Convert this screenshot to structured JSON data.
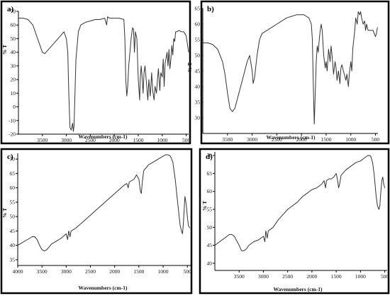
{
  "figure": {
    "x_axis_label": "Wavenumbers (cm-1)",
    "y_axis_label": "% T"
  },
  "chart_data": [
    {
      "type": "line",
      "panel_label": "a)",
      "xlabel": "Wavenumbers (cm-1)",
      "ylabel": "% T",
      "xlim": [
        4000,
        450
      ],
      "ylim": [
        -20,
        70
      ],
      "xticks": [
        3500,
        3000,
        2500,
        2000,
        1500,
        1000,
        500
      ],
      "yticks": [
        -20,
        -10,
        0,
        10,
        20,
        30,
        40,
        50,
        60,
        70
      ],
      "xtick_labels": [
        "3500",
        "3000",
        "2500",
        "2000",
        "1500",
        "1000",
        "500"
      ],
      "ytick_labels": [
        "-20",
        "-10",
        "0",
        "10",
        "20",
        "30",
        "40",
        "50",
        "60",
        "70"
      ],
      "grid": false,
      "series": [
        {
          "x": [
            4000,
            3900,
            3800,
            3700,
            3600,
            3500,
            3450,
            3400,
            3300,
            3200,
            3100,
            3050,
            3000,
            2970,
            2950,
            2925,
            2900,
            2870,
            2855,
            2840,
            2800,
            2750,
            2700,
            2600,
            2500,
            2400,
            2300,
            2200,
            2160,
            2140,
            2100,
            2000,
            1900,
            1800,
            1780,
            1760,
            1740,
            1720,
            1700,
            1650,
            1620,
            1600,
            1580,
            1560,
            1530,
            1500,
            1470,
            1460,
            1440,
            1420,
            1400,
            1380,
            1360,
            1330,
            1300,
            1280,
            1250,
            1220,
            1200,
            1170,
            1150,
            1120,
            1100,
            1080,
            1050,
            1030,
            1000,
            980,
            960,
            940,
            900,
            880,
            860,
            840,
            820,
            800,
            780,
            760,
            740,
            720,
            700,
            650,
            600,
            550,
            500,
            450
          ],
          "y": [
            65,
            65,
            64,
            60,
            50,
            40,
            39,
            41,
            45,
            49,
            53,
            55,
            50,
            40,
            10,
            -15,
            -17,
            -12,
            -18,
            -14,
            35,
            55,
            60,
            62,
            63,
            64,
            64,
            65,
            60,
            66,
            65,
            65,
            65,
            64,
            50,
            20,
            8,
            15,
            30,
            50,
            58,
            57,
            40,
            55,
            50,
            20,
            5,
            20,
            30,
            22,
            10,
            25,
            30,
            18,
            5,
            20,
            8,
            25,
            12,
            5,
            15,
            10,
            20,
            28,
            12,
            25,
            22,
            35,
            15,
            32,
            40,
            30,
            42,
            28,
            35,
            45,
            38,
            50,
            48,
            55,
            55,
            56,
            55,
            55,
            52,
            40
          ]
        }
      ]
    },
    {
      "type": "line",
      "panel_label": "b)",
      "xlabel": "Wavenumbers (cm-1)",
      "ylabel": "% T",
      "xlim": [
        4000,
        450
      ],
      "ylim": [
        25,
        65
      ],
      "xticks": [
        3500,
        3000,
        2500,
        2000,
        1500,
        1000,
        500
      ],
      "yticks": [
        30,
        35,
        40,
        45,
        50,
        55,
        60,
        65
      ],
      "xtick_labels": [
        "3500",
        "3000",
        "2500",
        "2000",
        "1500",
        "1000",
        "500"
      ],
      "ytick_labels": [
        "30",
        "35",
        "40",
        "45",
        "50",
        "55",
        "60",
        "65"
      ],
      "grid": false,
      "series": [
        {
          "x": [
            4000,
            3900,
            3800,
            3700,
            3600,
            3550,
            3500,
            3450,
            3400,
            3350,
            3300,
            3200,
            3100,
            3050,
            3000,
            2980,
            2950,
            2900,
            2850,
            2800,
            2700,
            2600,
            2500,
            2400,
            2300,
            2200,
            2100,
            2000,
            1950,
            1900,
            1850,
            1800,
            1780,
            1760,
            1740,
            1720,
            1700,
            1680,
            1660,
            1640,
            1620,
            1600,
            1580,
            1550,
            1520,
            1500,
            1480,
            1450,
            1420,
            1400,
            1380,
            1350,
            1320,
            1300,
            1280,
            1250,
            1220,
            1200,
            1180,
            1150,
            1100,
            1080,
            1050,
            1030,
            1000,
            980,
            960,
            940,
            920,
            900,
            870,
            850,
            820,
            800,
            780,
            750,
            720,
            700,
            680,
            650,
            600,
            550,
            500,
            480,
            460
          ],
          "y": [
            54,
            54,
            53.5,
            52,
            48,
            44,
            38,
            33,
            32,
            33,
            36,
            42,
            48,
            50,
            45,
            41,
            43,
            50,
            55,
            57,
            58,
            59,
            60,
            61,
            62,
            62.5,
            63,
            63,
            63,
            62.5,
            62,
            60,
            55,
            40,
            28,
            38,
            48,
            53,
            51,
            55,
            58,
            60,
            58,
            50,
            46,
            48,
            45,
            52,
            48,
            53,
            50,
            44,
            48,
            46,
            42,
            45,
            41,
            46,
            47,
            45,
            42,
            44,
            40,
            44,
            48,
            45,
            52,
            55,
            58,
            62,
            60,
            64,
            63,
            64,
            62,
            60,
            61,
            58,
            60,
            58,
            58,
            58,
            56,
            57,
            59
          ]
        }
      ]
    },
    {
      "type": "line",
      "panel_label": "c)",
      "xlabel": "Wavenumbers (cm-1)",
      "ylabel": "% T",
      "xlim": [
        4000,
        430
      ],
      "ylim": [
        33,
        72
      ],
      "xticks": [
        4000,
        3500,
        3000,
        2500,
        2000,
        1500,
        1000,
        500
      ],
      "yticks": [
        35,
        40,
        45,
        50,
        55,
        60,
        65,
        70
      ],
      "xtick_labels": [
        "4000",
        "3500",
        "3000",
        "2500",
        "2000",
        "1500",
        "1000",
        "500"
      ],
      "ytick_labels": [
        "35",
        "40",
        "45",
        "50",
        "55",
        "60",
        "65",
        "70"
      ],
      "grid": false,
      "series": [
        {
          "x": [
            4000,
            3900,
            3800,
            3700,
            3650,
            3600,
            3550,
            3500,
            3450,
            3400,
            3350,
            3300,
            3200,
            3100,
            3000,
            2970,
            2950,
            2920,
            2900,
            2850,
            2800,
            2700,
            2600,
            2500,
            2400,
            2300,
            2200,
            2100,
            2000,
            1900,
            1800,
            1750,
            1720,
            1700,
            1650,
            1600,
            1550,
            1500,
            1470,
            1450,
            1430,
            1400,
            1300,
            1200,
            1100,
            1050,
            1000,
            950,
            900,
            850,
            800,
            750,
            700,
            650,
            620,
            600,
            580,
            550,
            520,
            500,
            480,
            450
          ],
          "y": [
            40,
            41,
            42,
            43,
            43,
            42,
            40,
            38.5,
            38,
            38.5,
            39.5,
            40.5,
            41.5,
            42.5,
            44,
            42,
            45,
            43,
            45,
            45.5,
            46,
            47.5,
            49,
            50.5,
            52,
            53.5,
            55,
            56.5,
            58,
            59.5,
            61,
            61.5,
            60,
            62,
            62.5,
            63,
            64.5,
            63,
            59,
            58,
            62,
            66,
            68,
            69,
            70,
            70.5,
            71,
            71.5,
            71.5,
            71,
            69,
            63,
            55,
            47,
            45,
            44,
            48,
            57,
            54,
            50,
            47,
            46
          ]
        }
      ]
    },
    {
      "type": "line",
      "panel_label": "d)",
      "xlabel": "Wavenumbers (cm-1)",
      "ylabel": "% T",
      "xlim": [
        4000,
        450
      ],
      "ylim": [
        38,
        71
      ],
      "xticks": [
        3500,
        3000,
        2500,
        2000,
        1500,
        1000,
        500
      ],
      "yticks": [
        40,
        45,
        50,
        55,
        60,
        65,
        70
      ],
      "xtick_labels": [
        "3500",
        "3000",
        "2500",
        "2000",
        "1500",
        "1000",
        "500"
      ],
      "ytick_labels": [
        "40",
        "45",
        "50",
        "55",
        "60",
        "65",
        "70"
      ],
      "grid": false,
      "series": [
        {
          "x": [
            4000,
            3900,
            3800,
            3700,
            3650,
            3600,
            3500,
            3450,
            3400,
            3350,
            3300,
            3200,
            3100,
            3000,
            2970,
            2950,
            2920,
            2900,
            2850,
            2800,
            2700,
            2600,
            2500,
            2400,
            2300,
            2200,
            2100,
            2000,
            1900,
            1800,
            1750,
            1720,
            1700,
            1650,
            1600,
            1550,
            1500,
            1470,
            1450,
            1430,
            1400,
            1300,
            1200,
            1100,
            1000,
            950,
            900,
            850,
            800,
            780,
            750,
            720,
            700,
            680,
            650,
            620,
            600,
            580,
            560,
            540,
            520,
            500
          ],
          "y": [
            45,
            46,
            47,
            48,
            48,
            47.5,
            45,
            43.5,
            43.5,
            44,
            45,
            46,
            46.5,
            47.5,
            46,
            49,
            47,
            49,
            49.5,
            50,
            52,
            53.5,
            55,
            56,
            57,
            58.5,
            59.5,
            60.5,
            61,
            62,
            63,
            61,
            63,
            63.5,
            63.5,
            64,
            65,
            63,
            61,
            62,
            64.5,
            66,
            67,
            68,
            68.5,
            69,
            69.5,
            70,
            70,
            69.5,
            68,
            65,
            62,
            59,
            56,
            55,
            56,
            60,
            63,
            64,
            62,
            61
          ]
        }
      ]
    }
  ]
}
